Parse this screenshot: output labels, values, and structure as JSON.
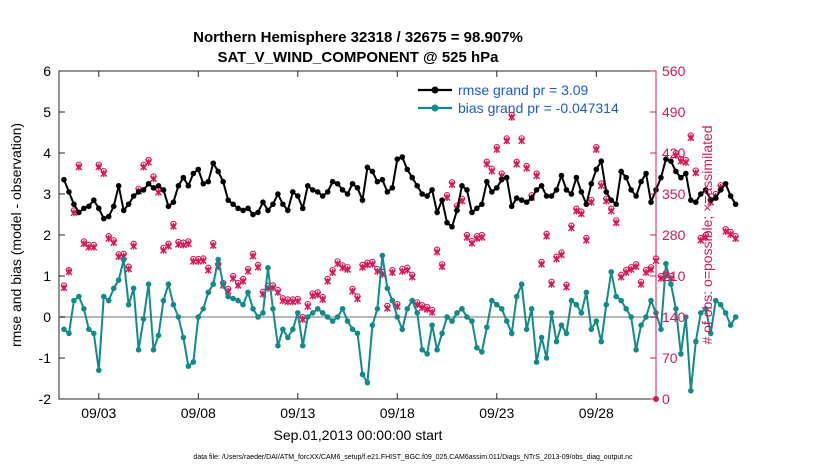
{
  "chart_data": {
    "type": "line",
    "title": "Northern Hemisphere 32318 / 32675 = 98.907%",
    "subtitle": "SAT_V_WIND_COMPONENT @ 525 hPa",
    "xlabel": "Sep.01,2013 00:00:00 start",
    "ylabel": "rmse and bias (model - observation)",
    "y2label": "# of obs: o=possible; ×=assimilated",
    "xlim": [
      1,
      31
    ],
    "ylim": [
      -2,
      6
    ],
    "y2lim": [
      0,
      560
    ],
    "x_ticks": [
      3,
      8,
      13,
      18,
      23,
      28
    ],
    "x_tick_labels": [
      "09/03",
      "09/08",
      "09/13",
      "09/18",
      "09/23",
      "09/28"
    ],
    "y_ticks": [
      -2,
      -1,
      0,
      1,
      2,
      3,
      4,
      5,
      6
    ],
    "y_tick_labels": [
      "-2",
      "-1",
      "0",
      "1",
      "2",
      "3",
      "4",
      "5",
      "6"
    ],
    "y2_ticks": [
      0,
      70,
      140,
      210,
      280,
      350,
      420,
      490,
      560
    ],
    "y2_tick_labels": [
      "0",
      "70",
      "140",
      "210",
      "280",
      "350",
      "420",
      "490",
      "560"
    ],
    "footnote": "data file: /Users/raeder/DAI/ATM_forcXX/CAM6_setup/f.e21.FHIST_BGC.f09_025.CAM6assim.011/Diags_NTrS_2013-09/obs_diag_output.nc",
    "colors": {
      "rmse": "#000000",
      "bias": "#138a8a",
      "obs": "#d6185a",
      "zero": "#b8b8b8",
      "legend_text": "#1a5bd8"
    },
    "series": [
      {
        "name": "rmse grand pr = 3.09",
        "axis": "left",
        "values": [
          3.35,
          3.05,
          2.75,
          2.55,
          2.65,
          2.7,
          2.85,
          2.65,
          2.4,
          2.45,
          2.7,
          3.2,
          2.6,
          2.75,
          2.95,
          3.05,
          3.1,
          3.25,
          3.15,
          3.2,
          3.1,
          2.7,
          2.8,
          3.2,
          3.4,
          3.2,
          3.5,
          3.6,
          3.25,
          3.3,
          3.75,
          3.55,
          3.3,
          2.85,
          2.75,
          2.65,
          2.6,
          2.65,
          2.5,
          2.55,
          2.8,
          2.6,
          2.75,
          3.0,
          2.75,
          2.6,
          3.05,
          2.95,
          2.65,
          3.2,
          3.1,
          3.05,
          2.95,
          3.05,
          3.3,
          3.25,
          3.1,
          3.0,
          3.25,
          3.15,
          2.85,
          3.65,
          3.55,
          3.3,
          3.35,
          3.05,
          3.15,
          3.85,
          3.9,
          3.6,
          3.4,
          3.2,
          3.0,
          2.95,
          3.1,
          2.55,
          2.85,
          2.3,
          2.2,
          2.6,
          3.2,
          3.1,
          2.55,
          2.65,
          2.75,
          3.3,
          3.05,
          3.15,
          3.35,
          3.4,
          2.7,
          2.9,
          2.85,
          2.8,
          2.9,
          3.1,
          3.2,
          2.95,
          2.95,
          3.1,
          3.45,
          3.1,
          3.0,
          3.4,
          3.05,
          2.75,
          3.25,
          3.6,
          3.8,
          3.05,
          2.85,
          2.75,
          3.55,
          3.4,
          3.1,
          2.95,
          3.3,
          3.5,
          2.8,
          3.1,
          3.4,
          3.85,
          3.8,
          3.55,
          3.4,
          3.5,
          2.85,
          2.8,
          3.0,
          3.1,
          2.85,
          2.9,
          3.1,
          3.25,
          2.95,
          2.75
        ]
      },
      {
        "name": "bias grand pr = -0.047314",
        "axis": "left",
        "values": [
          -0.3,
          -0.4,
          0.4,
          0.5,
          0.2,
          -0.3,
          -0.4,
          -1.3,
          0.5,
          0.4,
          0.7,
          0.9,
          1.4,
          0.3,
          0.7,
          -0.8,
          -0.05,
          0.8,
          -0.8,
          -0.45,
          0.4,
          0.8,
          0.3,
          0.0,
          -0.5,
          -1.2,
          -1.1,
          0.0,
          0.2,
          0.6,
          0.8,
          1.4,
          0.8,
          0.5,
          0.45,
          0.4,
          0.3,
          0.6,
          0.2,
          0.0,
          0.1,
          1.2,
          0.2,
          -0.7,
          -0.3,
          -0.5,
          -0.3,
          0.1,
          -0.7,
          0.0,
          0.1,
          0.2,
          0.1,
          0.0,
          -0.1,
          0.0,
          0.2,
          -0.1,
          -0.3,
          -0.4,
          -1.4,
          -1.6,
          -0.2,
          0.2,
          1.5,
          0.7,
          0.4,
          0.0,
          -0.3,
          0.2,
          0.4,
          0.1,
          -0.8,
          -0.9,
          -0.2,
          -0.8,
          -0.4,
          0.0,
          -0.1,
          0.1,
          0.2,
          0.0,
          -0.1,
          -0.75,
          -0.85,
          -0.25,
          0.4,
          0.3,
          0.2,
          -0.1,
          -0.4,
          0.5,
          0.8,
          -0.3,
          0.2,
          -1.1,
          -0.5,
          -1.0,
          0.1,
          -0.6,
          -0.2,
          -0.4,
          0.4,
          0.3,
          0.1,
          0.6,
          -0.3,
          -0.1,
          -0.6,
          0.3,
          1.1,
          0.5,
          0.4,
          0.2,
          0.0,
          -0.8,
          -0.2,
          0.0,
          0.4,
          0.1,
          -0.3,
          1.3,
          0.8,
          0.2,
          -0.9,
          0.0,
          -1.8,
          -0.6,
          0.1,
          0.2,
          -0.4,
          0.4,
          0.3,
          0.1,
          -0.2,
          0.0
        ]
      },
      {
        "name": "observations possible",
        "axis": "right",
        "values": [
          194,
          220,
          322,
          400,
          269,
          263,
          263,
          400,
          389,
          278,
          271,
          247,
          248,
          226,
          265,
          359,
          400,
          408,
          380,
          357,
          258,
          265,
          299,
          268,
          267,
          269,
          239,
          239,
          240,
          224,
          266,
          230,
          198,
          188,
          210,
          198,
          205,
          222,
          248,
          229,
          183,
          193,
          194,
          186,
          172,
          170,
          170,
          171,
          140,
          162,
          180,
          182,
          174,
          205,
          220,
          235,
          228,
          225,
          188,
          175,
          229,
          233,
          234,
          222,
          217,
          159,
          220,
          162,
          222,
          224,
          212,
          165,
          160,
          157,
          152,
          255,
          230,
          348,
          370,
          330,
          342,
          280,
          270,
          278,
          280,
          405,
          393,
          430,
          385,
          445,
          485,
          405,
          445,
          398,
          348,
          385,
          234,
          282,
          200,
          243,
          250,
          195,
          296,
          325,
          320,
          275,
          340,
          430,
          368,
          342,
          325,
          305,
          212,
          220,
          225,
          230,
          200,
          220,
          225,
          240,
          210,
          215,
          210,
          420,
          410,
          408,
          450,
          390,
          275,
          280,
          340,
          350,
          365,
          290,
          285,
          278
        ]
      },
      {
        "name": "observations assimilated",
        "axis": "right",
        "values": [
          190,
          217,
          318,
          396,
          265,
          259,
          259,
          396,
          385,
          274,
          267,
          243,
          244,
          222,
          261,
          355,
          396,
          404,
          376,
          353,
          254,
          261,
          295,
          264,
          263,
          265,
          235,
          235,
          236,
          220,
          262,
          226,
          194,
          184,
          206,
          194,
          201,
          218,
          244,
          225,
          179,
          189,
          190,
          182,
          168,
          166,
          166,
          167,
          136,
          158,
          176,
          178,
          170,
          201,
          216,
          231,
          224,
          221,
          184,
          171,
          225,
          229,
          230,
          218,
          213,
          155,
          216,
          158,
          218,
          220,
          208,
          161,
          156,
          153,
          148,
          251,
          226,
          344,
          366,
          326,
          338,
          276,
          266,
          274,
          276,
          401,
          389,
          426,
          381,
          441,
          481,
          401,
          441,
          394,
          344,
          381,
          230,
          278,
          196,
          239,
          246,
          191,
          292,
          321,
          316,
          271,
          336,
          426,
          364,
          338,
          321,
          301,
          208,
          216,
          221,
          226,
          196,
          216,
          221,
          236,
          206,
          211,
          206,
          416,
          406,
          404,
          446,
          386,
          271,
          276,
          336,
          346,
          361,
          286,
          281,
          274
        ]
      }
    ]
  }
}
